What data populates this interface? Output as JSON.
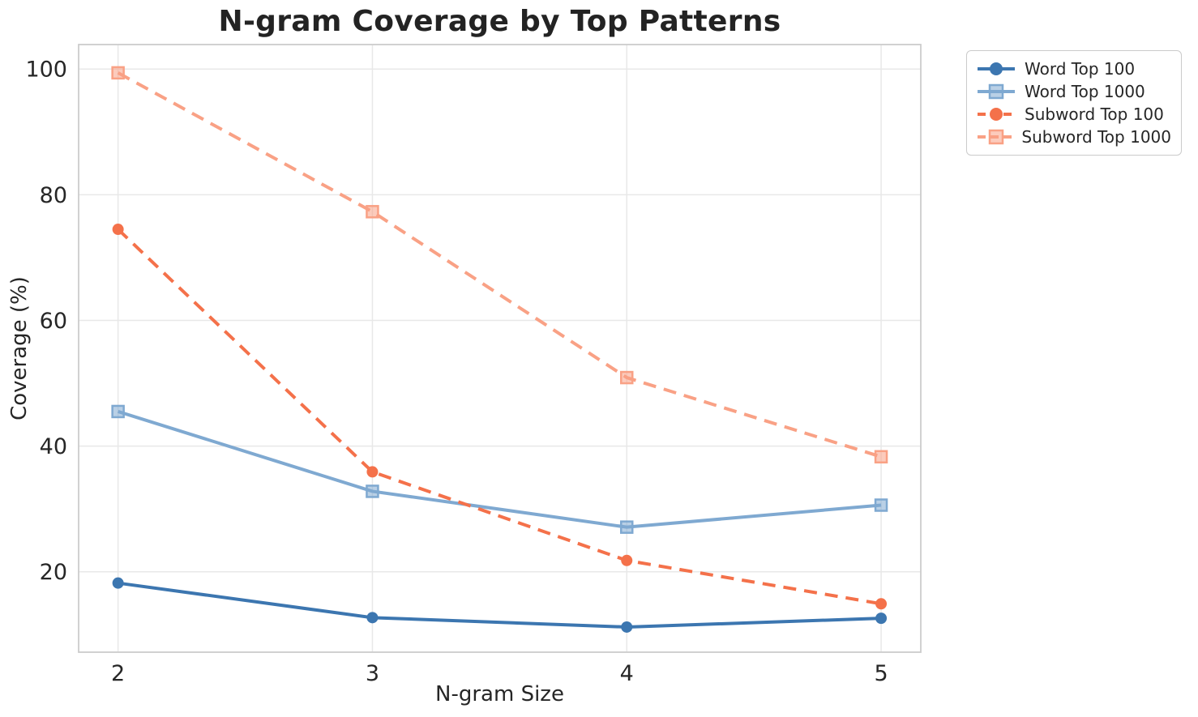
{
  "chart_data": {
    "type": "line",
    "title": "N-gram Coverage by Top Patterns",
    "xlabel": "N-gram Size",
    "ylabel": "Coverage (%)",
    "x": [
      2,
      3,
      4,
      5
    ],
    "xticks": [
      2,
      3,
      4,
      5
    ],
    "yticks": [
      20,
      40,
      60,
      80,
      100
    ],
    "xlim": [
      1.845,
      5.156
    ],
    "ylim": [
      7.2,
      103.9
    ],
    "grid": true,
    "legend_position": "outside upper right",
    "colors": {
      "grid": "#e8e8e8",
      "spine": "#cccccc",
      "text": "#262626",
      "title": "#232323",
      "background": "#ffffff"
    },
    "series": [
      {
        "name": "Word Top 100",
        "values": [
          18.2,
          12.7,
          11.2,
          12.6
        ],
        "color": "#3c76b0",
        "marker": "circle",
        "dash": "solid"
      },
      {
        "name": "Word Top 1000",
        "values": [
          45.5,
          32.8,
          27.1,
          30.6
        ],
        "color": "#7fa9d1",
        "marker": "square",
        "dash": "solid"
      },
      {
        "name": "Subword Top 100",
        "values": [
          74.5,
          35.9,
          21.8,
          14.9
        ],
        "color": "#f4714a",
        "marker": "circle",
        "dash": "dashed"
      },
      {
        "name": "Subword Top 1000",
        "values": [
          99.4,
          77.3,
          50.9,
          38.3
        ],
        "color": "#f9a185",
        "marker": "square",
        "dash": "dashed"
      }
    ]
  }
}
